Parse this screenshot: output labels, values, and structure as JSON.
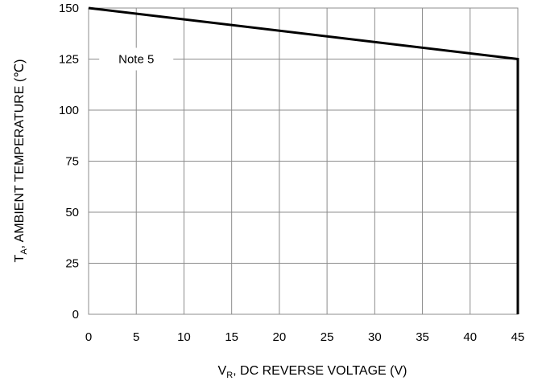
{
  "chart_data": {
    "type": "line",
    "title": "",
    "xlabel": {
      "prefix": "V",
      "subscript": "R",
      "rest": ", DC REVERSE VOLTAGE (V)"
    },
    "ylabel": {
      "prefix": "T",
      "subscript": "A",
      "rest": ", AMBIENT TEMPERATURE (℃)"
    },
    "xlim": [
      0,
      45
    ],
    "ylim": [
      0,
      150
    ],
    "x_ticks": [
      "0",
      "5",
      "10",
      "15",
      "20",
      "25",
      "30",
      "35",
      "40",
      "45"
    ],
    "y_ticks": [
      "0",
      "25",
      "50",
      "75",
      "100",
      "125",
      "150"
    ],
    "grid": true,
    "series": [
      {
        "x": [
          0,
          45,
          45
        ],
        "y": [
          150,
          125,
          0
        ],
        "color": "#000000"
      }
    ],
    "annotations": [
      {
        "text": "Note 5",
        "x": 5,
        "y": 125
      }
    ]
  }
}
